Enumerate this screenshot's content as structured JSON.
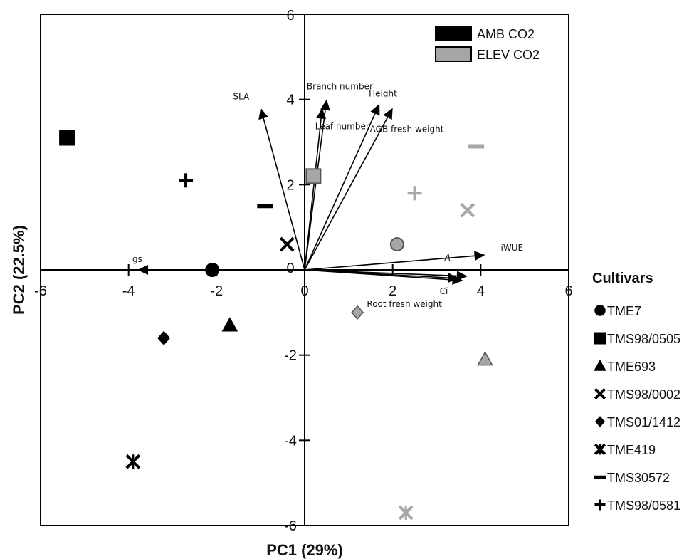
{
  "chart_data": {
    "type": "scatter",
    "xlabel": "PC1 (29%)",
    "ylabel": "PC2 (22.5%)",
    "xlim": [
      -6,
      6
    ],
    "ylim": [
      -6,
      6
    ],
    "x_ticks": [
      -6,
      -4,
      -2,
      0,
      2,
      4,
      6
    ],
    "y_ticks": [
      6,
      4,
      2,
      0,
      -2,
      -4,
      -6
    ],
    "grid": false,
    "legend_treatment": {
      "placement": "top-right",
      "entries": [
        {
          "label": "AMB CO2",
          "color": "#000000"
        },
        {
          "label": "ELEV CO2",
          "color": "#a6a6a6"
        }
      ]
    },
    "cultivars_title": "Cultivars",
    "cultivars": [
      {
        "name": "TME7",
        "marker": "circle"
      },
      {
        "name": "TMS98/0505",
        "marker": "square"
      },
      {
        "name": "TME693",
        "marker": "triangle"
      },
      {
        "name": "TMS98/0002",
        "marker": "x"
      },
      {
        "name": "TMS01/1412",
        "marker": "diamond"
      },
      {
        "name": "TME419",
        "marker": "asterisk"
      },
      {
        "name": "TMS30572",
        "marker": "dash"
      },
      {
        "name": "TMS98/0581",
        "marker": "plus"
      }
    ],
    "points": [
      {
        "cultivar": "TME7",
        "treatment": "AMB CO2",
        "x": -2.1,
        "y": 0.0
      },
      {
        "cultivar": "TME7",
        "treatment": "ELEV CO2",
        "x": 2.1,
        "y": 0.6
      },
      {
        "cultivar": "TMS98/0505",
        "treatment": "AMB CO2",
        "x": -5.4,
        "y": 3.1
      },
      {
        "cultivar": "TMS98/0505",
        "treatment": "ELEV CO2",
        "x": 0.2,
        "y": 2.2
      },
      {
        "cultivar": "TME693",
        "treatment": "AMB CO2",
        "x": -1.7,
        "y": -1.3
      },
      {
        "cultivar": "TME693",
        "treatment": "ELEV CO2",
        "x": 4.1,
        "y": -2.1
      },
      {
        "cultivar": "TMS98/0002",
        "treatment": "AMB CO2",
        "x": -0.4,
        "y": 0.6
      },
      {
        "cultivar": "TMS98/0002",
        "treatment": "ELEV CO2",
        "x": 3.7,
        "y": 1.4
      },
      {
        "cultivar": "TMS01/1412",
        "treatment": "AMB CO2",
        "x": -3.2,
        "y": -1.6
      },
      {
        "cultivar": "TMS01/1412",
        "treatment": "ELEV CO2",
        "x": 1.2,
        "y": -1.0
      },
      {
        "cultivar": "TME419",
        "treatment": "AMB CO2",
        "x": -3.9,
        "y": -4.5
      },
      {
        "cultivar": "TME419",
        "treatment": "ELEV CO2",
        "x": 2.3,
        "y": -5.7
      },
      {
        "cultivar": "TMS30572",
        "treatment": "AMB CO2",
        "x": -0.9,
        "y": 1.5
      },
      {
        "cultivar": "TMS30572",
        "treatment": "ELEV CO2",
        "x": 3.9,
        "y": 2.9
      },
      {
        "cultivar": "TMS98/0581",
        "treatment": "AMB CO2",
        "x": -2.7,
        "y": 2.1
      },
      {
        "cultivar": "TMS98/0581",
        "treatment": "ELEV CO2",
        "x": 2.5,
        "y": 1.8
      }
    ],
    "vectors": [
      {
        "label": "SLA",
        "x": -1.0,
        "y": 3.8
      },
      {
        "label": "Branch number",
        "x": 0.5,
        "y": 4.0
      },
      {
        "label": "Leaf number",
        "x": 0.4,
        "y": 3.8
      },
      {
        "label": "Height",
        "x": 1.7,
        "y": 3.9
      },
      {
        "label": "AGB fresh weight",
        "x": 2.0,
        "y": 3.8
      },
      {
        "label": "iWUE",
        "x": 4.1,
        "y": 0.35
      },
      {
        "label": "A",
        "x": 3.7,
        "y": -0.15
      },
      {
        "label": "Ci",
        "x": 3.6,
        "y": -0.25
      },
      {
        "label": "Root fresh weight",
        "x": 3.5,
        "y": -0.2
      },
      {
        "label": "gs",
        "x": -3.8,
        "y": 0.0
      }
    ]
  }
}
